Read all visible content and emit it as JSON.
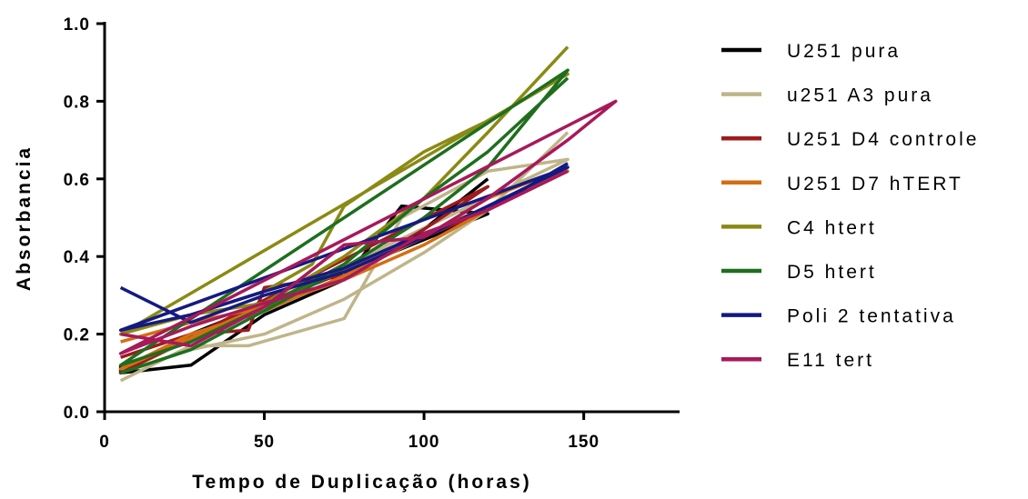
{
  "chart_data": {
    "type": "line",
    "title": "",
    "xlabel": "Tempo de Duplicação (horas)",
    "ylabel": "Absorbancia",
    "xlim": [
      0,
      180
    ],
    "ylim": [
      0.0,
      1.0
    ],
    "xticks": [
      0,
      50,
      100,
      150
    ],
    "xtick_labels": [
      "0",
      "50",
      "100",
      "150"
    ],
    "yticks": [
      0.0,
      0.2,
      0.4,
      0.6,
      0.8,
      1.0
    ],
    "ytick_labels": [
      "0.0",
      "0.2",
      "0.4",
      "0.6",
      "0.8",
      "1.0"
    ],
    "grid": false,
    "legend_position": "right",
    "series": [
      {
        "name": "U251 pura",
        "color": "#000000",
        "points": [
          [
            5,
            0.12
          ],
          [
            5,
            0.1
          ],
          [
            27,
            0.12
          ],
          [
            50,
            0.25
          ],
          [
            75,
            0.34
          ],
          [
            93,
            0.53
          ],
          [
            120,
            0.51
          ],
          [
            27,
            0.2
          ],
          [
            50,
            0.26
          ],
          [
            75,
            0.35
          ],
          [
            100,
            0.47
          ],
          [
            120,
            0.6
          ]
        ]
      },
      {
        "name": "u251 A3 pura",
        "color": "#bfb58a",
        "points": [
          [
            5,
            0.08
          ],
          [
            27,
            0.17
          ],
          [
            45,
            0.17
          ],
          [
            75,
            0.24
          ],
          [
            93,
            0.5
          ],
          [
            120,
            0.62
          ],
          [
            145,
            0.65
          ],
          [
            5,
            0.1
          ],
          [
            27,
            0.16
          ],
          [
            50,
            0.2
          ],
          [
            75,
            0.29
          ],
          [
            100,
            0.41
          ],
          [
            120,
            0.52
          ],
          [
            145,
            0.72
          ]
        ]
      },
      {
        "name": "U251 D4 controle",
        "color": "#9e1b1b",
        "points": [
          [
            5,
            0.14
          ],
          [
            27,
            0.2
          ],
          [
            45,
            0.21
          ],
          [
            50,
            0.32
          ],
          [
            75,
            0.35
          ],
          [
            100,
            0.47
          ],
          [
            120,
            0.58
          ],
          [
            5,
            0.1
          ],
          [
            27,
            0.19
          ],
          [
            50,
            0.28
          ],
          [
            75,
            0.36
          ],
          [
            100,
            0.45
          ],
          [
            120,
            0.52
          ],
          [
            145,
            0.63
          ]
        ]
      },
      {
        "name": "U251 D7 hTERT",
        "color": "#d46e14",
        "points": [
          [
            5,
            0.18
          ],
          [
            27,
            0.23
          ],
          [
            50,
            0.27
          ],
          [
            75,
            0.34
          ],
          [
            100,
            0.43
          ],
          [
            120,
            0.52
          ],
          [
            145,
            0.62
          ],
          [
            5,
            0.11
          ],
          [
            27,
            0.2
          ],
          [
            50,
            0.26
          ],
          [
            75,
            0.35
          ],
          [
            100,
            0.45
          ],
          [
            120,
            0.55
          ],
          [
            145,
            0.63
          ]
        ]
      },
      {
        "name": "C4 htert",
        "color": "#8a8a14",
        "points": [
          [
            5,
            0.21
          ],
          [
            27,
            0.25
          ],
          [
            50,
            0.31
          ],
          [
            65,
            0.38
          ],
          [
            75,
            0.53
          ],
          [
            100,
            0.67
          ],
          [
            120,
            0.75
          ],
          [
            145,
            0.87
          ],
          [
            5,
            0.2
          ],
          [
            27,
            0.25
          ],
          [
            50,
            0.28
          ],
          [
            75,
            0.4
          ],
          [
            100,
            0.55
          ],
          [
            120,
            0.72
          ],
          [
            145,
            0.94
          ]
        ]
      },
      {
        "name": "D5 htert",
        "color": "#1e6e1e",
        "points": [
          [
            5,
            0.1
          ],
          [
            27,
            0.16
          ],
          [
            50,
            0.26
          ],
          [
            75,
            0.37
          ],
          [
            100,
            0.5
          ],
          [
            120,
            0.63
          ],
          [
            145,
            0.88
          ],
          [
            5,
            0.12
          ],
          [
            27,
            0.18
          ],
          [
            50,
            0.27
          ],
          [
            75,
            0.38
          ],
          [
            100,
            0.55
          ],
          [
            120,
            0.67
          ],
          [
            145,
            0.86
          ]
        ]
      },
      {
        "name": "Poli 2 tentativa",
        "color": "#141a82",
        "points": [
          [
            5,
            0.32
          ],
          [
            27,
            0.23
          ],
          [
            50,
            0.3
          ],
          [
            75,
            0.36
          ],
          [
            100,
            0.45
          ],
          [
            120,
            0.53
          ],
          [
            145,
            0.63
          ],
          [
            5,
            0.21
          ],
          [
            27,
            0.25
          ],
          [
            50,
            0.31
          ],
          [
            75,
            0.37
          ],
          [
            100,
            0.46
          ],
          [
            120,
            0.52
          ],
          [
            145,
            0.64
          ]
        ]
      },
      {
        "name": "E11 tert",
        "color": "#a8195a",
        "points": [
          [
            5,
            0.2
          ],
          [
            27,
            0.17
          ],
          [
            50,
            0.27
          ],
          [
            75,
            0.43
          ],
          [
            100,
            0.45
          ],
          [
            120,
            0.55
          ],
          [
            145,
            0.7
          ],
          [
            160,
            0.8
          ],
          [
            5,
            0.15
          ],
          [
            27,
            0.22
          ],
          [
            50,
            0.28
          ],
          [
            75,
            0.34
          ],
          [
            100,
            0.46
          ],
          [
            120,
            0.52
          ],
          [
            145,
            0.62
          ]
        ]
      }
    ]
  }
}
